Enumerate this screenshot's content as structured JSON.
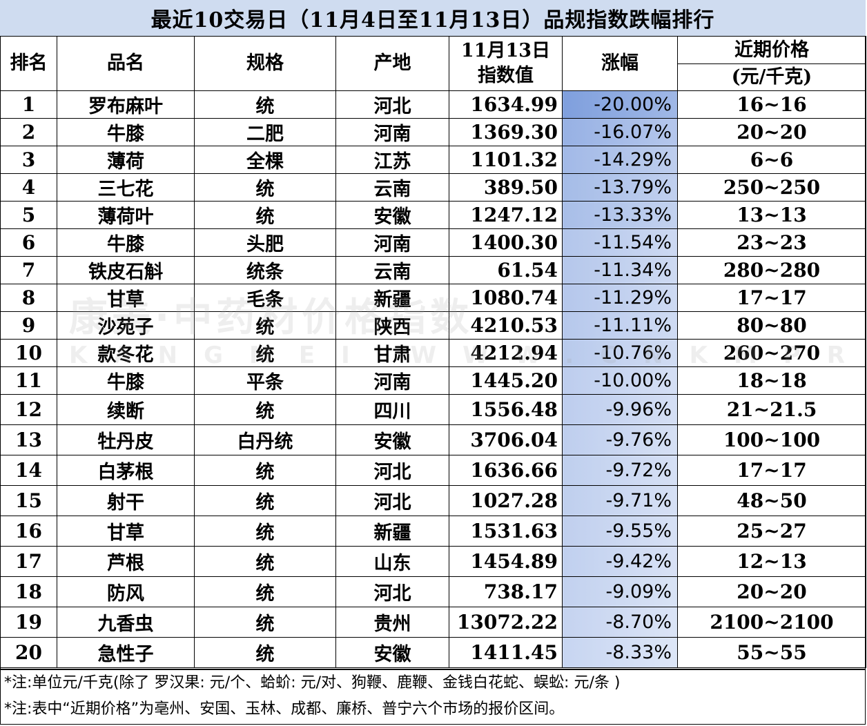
{
  "title": "最近10交易日（11月4日至11月13日）品规指数跌幅排行",
  "headers": {
    "rank": "排名",
    "name": "品名",
    "spec": "规格",
    "origin": "产地",
    "index_line1": "11月13日",
    "index_line2": "指数值",
    "change": "涨幅",
    "price_line1": "近期价格",
    "price_line2": "(元/千克)"
  },
  "rows": [
    {
      "rank": "1",
      "name": "罗布麻叶",
      "spec": "统",
      "origin": "河北",
      "index": "1634.99",
      "change": "-20.00%",
      "price": "16~16",
      "magnitude": 20.0
    },
    {
      "rank": "2",
      "name": "牛膝",
      "spec": "二肥",
      "origin": "河南",
      "index": "1369.30",
      "change": "-16.07%",
      "price": "20~20",
      "magnitude": 16.07
    },
    {
      "rank": "3",
      "name": "薄荷",
      "spec": "全棵",
      "origin": "江苏",
      "index": "1101.32",
      "change": "-14.29%",
      "price": "6~6",
      "magnitude": 14.29
    },
    {
      "rank": "4",
      "name": "三七花",
      "spec": "统",
      "origin": "云南",
      "index": "389.50",
      "change": "-13.79%",
      "price": "250~250",
      "magnitude": 13.79
    },
    {
      "rank": "5",
      "name": "薄荷叶",
      "spec": "统",
      "origin": "安徽",
      "index": "1247.12",
      "change": "-13.33%",
      "price": "13~13",
      "magnitude": 13.33
    },
    {
      "rank": "6",
      "name": "牛膝",
      "spec": "头肥",
      "origin": "河南",
      "index": "1400.30",
      "change": "-11.54%",
      "price": "23~23",
      "magnitude": 11.54
    },
    {
      "rank": "7",
      "name": "铁皮石斛",
      "spec": "统条",
      "origin": "云南",
      "index": "61.54",
      "change": "-11.34%",
      "price": "280~280",
      "magnitude": 11.34
    },
    {
      "rank": "8",
      "name": "甘草",
      "spec": "毛条",
      "origin": "新疆",
      "index": "1080.74",
      "change": "-11.29%",
      "price": "17~17",
      "magnitude": 11.29
    },
    {
      "rank": "9",
      "name": "沙苑子",
      "spec": "统",
      "origin": "陕西",
      "index": "4210.53",
      "change": "-11.11%",
      "price": "80~80",
      "magnitude": 11.11
    },
    {
      "rank": "10",
      "name": "款冬花",
      "spec": "统",
      "origin": "甘肃",
      "index": "4212.94",
      "change": "-10.76%",
      "price": "260~270",
      "magnitude": 10.76
    },
    {
      "rank": "11",
      "name": "牛膝",
      "spec": "平条",
      "origin": "河南",
      "index": "1445.20",
      "change": "-10.00%",
      "price": "18~18",
      "magnitude": 10.0
    },
    {
      "rank": "12",
      "name": "续断",
      "spec": "统",
      "origin": "四川",
      "index": "1556.48",
      "change": "-9.96%",
      "price": "21~21.5",
      "magnitude": 9.96
    },
    {
      "rank": "13",
      "name": "牡丹皮",
      "spec": "白丹统",
      "origin": "安徽",
      "index": "3706.04",
      "change": "-9.76%",
      "price": "100~100",
      "magnitude": 9.76
    },
    {
      "rank": "14",
      "name": "白茅根",
      "spec": "统",
      "origin": "河北",
      "index": "1636.66",
      "change": "-9.72%",
      "price": "17~17",
      "magnitude": 9.72
    },
    {
      "rank": "15",
      "name": "射干",
      "spec": "统",
      "origin": "河北",
      "index": "1027.28",
      "change": "-9.71%",
      "price": "48~50",
      "magnitude": 9.71
    },
    {
      "rank": "16",
      "name": "甘草",
      "spec": "统",
      "origin": "新疆",
      "index": "1531.63",
      "change": "-9.55%",
      "price": "25~27",
      "magnitude": 9.55
    },
    {
      "rank": "17",
      "name": "芦根",
      "spec": "统",
      "origin": "山东",
      "index": "1454.89",
      "change": "-9.42%",
      "price": "12~13",
      "magnitude": 9.42
    },
    {
      "rank": "18",
      "name": "防风",
      "spec": "统",
      "origin": "河北",
      "index": "738.17",
      "change": "-9.09%",
      "price": "20~20",
      "magnitude": 9.09
    },
    {
      "rank": "19",
      "name": "九香虫",
      "spec": "统",
      "origin": "贵州",
      "index": "13072.22",
      "change": "-8.70%",
      "price": "2100~2100",
      "magnitude": 8.7
    },
    {
      "rank": "20",
      "name": "急性子",
      "spec": "统",
      "origin": "安徽",
      "index": "1411.45",
      "change": "-8.33%",
      "price": "55~55",
      "magnitude": 8.33
    }
  ],
  "notes": [
    "*注:单位元/千克(除了 罗汉果: 元/个、蛤蚧: 元/对、狗鞭、鹿鞭、金钱白花蛇、蜈蚣: 元/条 )",
    "*注:表中“近期价格”为亳州、安国、玉林、成都、廉桥、普宁六个市场的报价区间。"
  ],
  "watermark": {
    "line1": "康美·中药材价格指数",
    "line2": "KANGMEI WWW.CNKMPRICE.COM"
  },
  "colors": {
    "title_bg": "#cfdcf0",
    "bar_dark": "#7f9fdd",
    "bar_light": "#eef2fb"
  }
}
